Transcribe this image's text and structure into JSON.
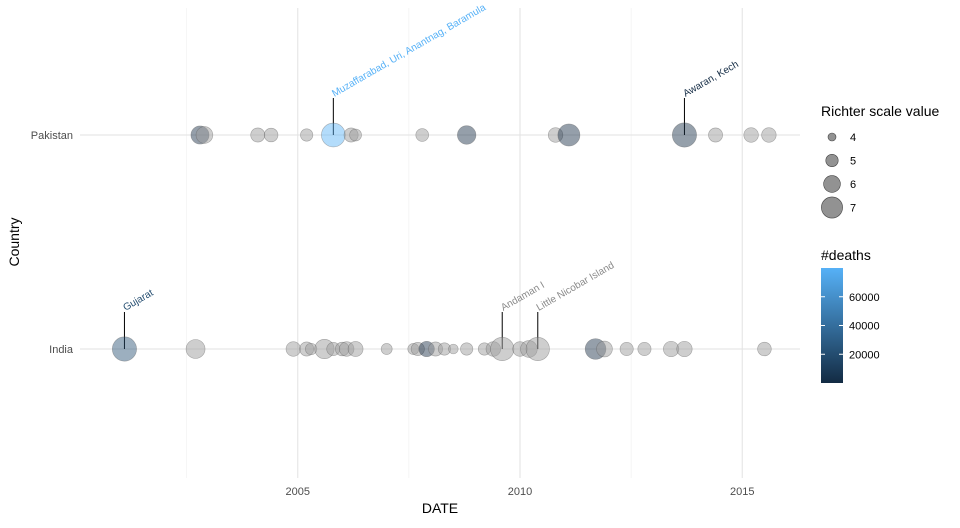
{
  "chart_data": {
    "type": "scatter",
    "title": "",
    "xlabel": "DATE",
    "ylabel": "Country",
    "xlim": [
      2000.1,
      2016.3
    ],
    "x_ticks": [
      2005,
      2010,
      2015
    ],
    "categories": [
      "India",
      "Pakistan"
    ],
    "grid": true,
    "legend_position": "right",
    "size_legend": {
      "title": "Richter scale value",
      "values": [
        4,
        5,
        6,
        7
      ]
    },
    "color_legend": {
      "title": "#deaths",
      "range": [
        0,
        80000
      ],
      "ticks": [
        20000,
        40000,
        60000
      ],
      "colors": [
        "#132b43",
        "#56b1f7"
      ]
    },
    "series": [
      {
        "name": "Pakistan",
        "points": [
          {
            "x": 2002.8,
            "magnitude": 6.3,
            "deaths": 20
          },
          {
            "x": 2002.9,
            "magnitude": 6.0,
            "deaths": 0
          },
          {
            "x": 2004.1,
            "magnitude": 5.4,
            "deaths": 0
          },
          {
            "x": 2004.4,
            "magnitude": 5.3,
            "deaths": 0
          },
          {
            "x": 2005.2,
            "magnitude": 5.0,
            "deaths": 0
          },
          {
            "x": 2005.8,
            "magnitude": 7.6,
            "deaths": 80000,
            "label": "Muzaffarabad, Uri, Anantnag, Baramula"
          },
          {
            "x": 2006.2,
            "magnitude": 5.4,
            "deaths": 0
          },
          {
            "x": 2006.3,
            "magnitude": 4.9,
            "deaths": 0
          },
          {
            "x": 2007.8,
            "magnitude": 5.1,
            "deaths": 0
          },
          {
            "x": 2008.8,
            "magnitude": 6.4,
            "deaths": 200
          },
          {
            "x": 2010.8,
            "magnitude": 5.5,
            "deaths": 0
          },
          {
            "x": 2011.1,
            "magnitude": 7.2,
            "deaths": 3
          },
          {
            "x": 2013.7,
            "magnitude": 7.7,
            "deaths": 825,
            "label": "Awaran, Kech"
          },
          {
            "x": 2014.4,
            "magnitude": 5.4,
            "deaths": 0
          },
          {
            "x": 2015.2,
            "magnitude": 5.5,
            "deaths": 0
          },
          {
            "x": 2015.6,
            "magnitude": 5.5,
            "deaths": 0
          }
        ]
      },
      {
        "name": "India",
        "points": [
          {
            "x": 2001.1,
            "magnitude": 7.7,
            "deaths": 20000,
            "label": "Gujarat"
          },
          {
            "x": 2002.7,
            "magnitude": 6.5,
            "deaths": 0
          },
          {
            "x": 2004.9,
            "magnitude": 5.5,
            "deaths": 0
          },
          {
            "x": 2005.2,
            "magnitude": 5.4,
            "deaths": 0
          },
          {
            "x": 2005.3,
            "magnitude": 4.8,
            "deaths": 0
          },
          {
            "x": 2005.6,
            "magnitude": 6.6,
            "deaths": 0
          },
          {
            "x": 2005.8,
            "magnitude": 5.2,
            "deaths": 0
          },
          {
            "x": 2006.0,
            "magnitude": 5.3,
            "deaths": 0
          },
          {
            "x": 2006.1,
            "magnitude": 5.5,
            "deaths": 0
          },
          {
            "x": 2006.3,
            "magnitude": 5.6,
            "deaths": 0
          },
          {
            "x": 2007.0,
            "magnitude": 4.7,
            "deaths": 0
          },
          {
            "x": 2007.6,
            "magnitude": 4.7,
            "deaths": 0
          },
          {
            "x": 2007.7,
            "magnitude": 5.2,
            "deaths": 0
          },
          {
            "x": 2007.9,
            "magnitude": 5.7,
            "deaths": 1
          },
          {
            "x": 2008.1,
            "magnitude": 5.4,
            "deaths": 0
          },
          {
            "x": 2008.3,
            "magnitude": 5.0,
            "deaths": 0
          },
          {
            "x": 2008.5,
            "magnitude": 4.4,
            "deaths": 0
          },
          {
            "x": 2008.8,
            "magnitude": 5.0,
            "deaths": 0
          },
          {
            "x": 2009.2,
            "magnitude": 5.0,
            "deaths": 0
          },
          {
            "x": 2009.4,
            "magnitude": 5.5,
            "deaths": 0
          },
          {
            "x": 2009.6,
            "magnitude": 7.5,
            "deaths": 0,
            "label": "Andaman I"
          },
          {
            "x": 2010.0,
            "magnitude": 5.5,
            "deaths": 0
          },
          {
            "x": 2010.2,
            "magnitude": 6.0,
            "deaths": 0
          },
          {
            "x": 2010.4,
            "magnitude": 7.5,
            "deaths": 0,
            "label": "Little Nicobar Island"
          },
          {
            "x": 2011.7,
            "magnitude": 6.9,
            "deaths": 100
          },
          {
            "x": 2011.9,
            "magnitude": 5.8,
            "deaths": 0
          },
          {
            "x": 2012.4,
            "magnitude": 5.2,
            "deaths": 0
          },
          {
            "x": 2012.8,
            "magnitude": 5.2,
            "deaths": 0
          },
          {
            "x": 2013.4,
            "magnitude": 5.7,
            "deaths": 0
          },
          {
            "x": 2013.7,
            "magnitude": 5.7,
            "deaths": 0
          },
          {
            "x": 2015.5,
            "magnitude": 5.3,
            "deaths": 0
          }
        ]
      }
    ]
  }
}
